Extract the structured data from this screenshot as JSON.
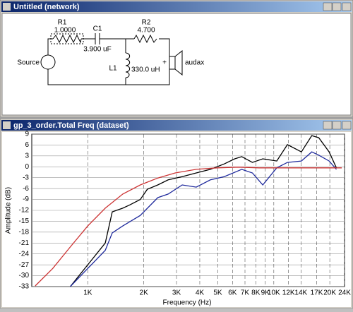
{
  "network_window": {
    "title": "Untitled (network)",
    "components": {
      "r1_name": "R1",
      "r1_value": "1.0000",
      "c1_name": "C1",
      "c1_value": "3.900 uF",
      "r2_name": "R2",
      "r2_value": "4.700",
      "l1_name": "L1",
      "l1_value": "330.0 uH",
      "source": "Source",
      "plus": "+",
      "speaker": "audax"
    }
  },
  "chart_window": {
    "title": "gp_3_order.Total Freq (dataset)"
  },
  "chart_data": {
    "type": "line",
    "x_label": "Frequency (Hz)",
    "y_label": "Amplitude (dB)",
    "log_x": true,
    "grid": true,
    "xlim": [
      500,
      24000
    ],
    "ylim": [
      -33,
      9
    ],
    "yticks": [
      9,
      6,
      3,
      0,
      -3,
      -6,
      -9,
      -12,
      -15,
      -18,
      -21,
      -24,
      -27,
      -30,
      -33
    ],
    "xticks": [
      {
        "value": 1000,
        "label": "1K"
      },
      {
        "value": 2000,
        "label": "2K"
      },
      {
        "value": 3000,
        "label": "3K"
      },
      {
        "value": 4000,
        "label": "4K"
      },
      {
        "value": 5000,
        "label": "5K"
      },
      {
        "value": 6000,
        "label": "6K"
      },
      {
        "value": 7000,
        "label": "7K"
      },
      {
        "value": 8000,
        "label": "8K"
      },
      {
        "value": 9000,
        "label": "9K"
      },
      {
        "value": 10000,
        "label": "10K"
      },
      {
        "value": 12000,
        "label": "12K"
      },
      {
        "value": 14000,
        "label": "14K"
      },
      {
        "value": 17000,
        "label": "17K"
      },
      {
        "value": 20000,
        "label": "20K"
      },
      {
        "value": 24000,
        "label": "24K"
      }
    ],
    "series": [
      {
        "color": "#000000",
        "x": [
          805,
          1000,
          1242,
          1354,
          1542,
          1682,
          1915,
          2088,
          2378,
          2706,
          3219,
          3830,
          4561,
          5421,
          6169,
          6727,
          7673,
          8723,
          10371,
          11836,
          14068,
          15998,
          17446,
          19845,
          21710
        ],
        "values": [
          -33,
          -27,
          -21,
          -12.4,
          -11.4,
          -10.5,
          -9,
          -6.2,
          -5,
          -3.6,
          -2.7,
          -1.7,
          -0.7,
          0.8,
          2.2,
          2.8,
          1.2,
          2.2,
          1.6,
          6.1,
          4.1,
          8.6,
          8,
          4.1,
          -0.3
        ]
      },
      {
        "color": "#1f2a9c",
        "x": [
          805,
          1000,
          1242,
          1354,
          1542,
          1915,
          2378,
          2706,
          3219,
          3830,
          4561,
          5421,
          6727,
          7673,
          8723,
          10371,
          11836,
          14068,
          15998,
          17446,
          19845,
          21710
        ],
        "values": [
          -33,
          -28,
          -23,
          -18.2,
          -16.3,
          -13.4,
          -8.5,
          -7.5,
          -5,
          -5.6,
          -3.6,
          -2.7,
          -0.7,
          -1.7,
          -5,
          -0.3,
          1.2,
          1.6,
          4.1,
          3.2,
          1.6,
          -0.7
        ]
      },
      {
        "color": "#cc3333",
        "x": [
          522,
          648,
          805,
          1000,
          1242,
          1542,
          1915,
          2378,
          2953,
          3830,
          4967,
          6442,
          8355,
          10834,
          14068,
          18245,
          23192
        ],
        "values": [
          -32.8,
          -28,
          -22.1,
          -16.3,
          -11.4,
          -7.5,
          -5,
          -3.1,
          -1.7,
          -0.7,
          -0.3,
          -0.1,
          -0.3,
          -0.3,
          -0.3,
          -0.3,
          -0.3
        ]
      }
    ]
  }
}
